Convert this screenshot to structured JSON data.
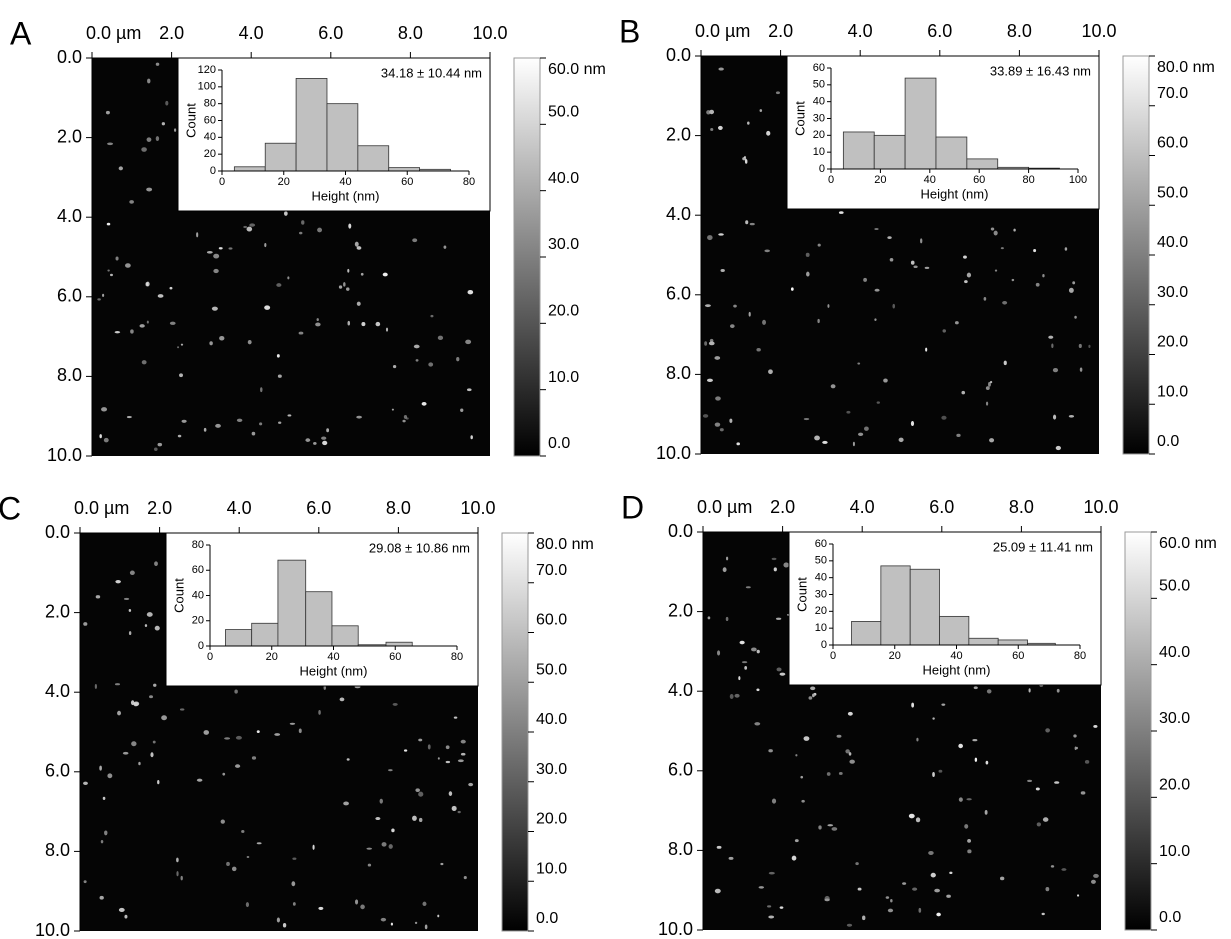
{
  "chart_data": [
    {
      "type": "histogram",
      "panel_label": "A",
      "annotation": "34.18 ± 10.44 nm",
      "xlabel": "Height (nm)",
      "ylabel": "Count",
      "bins": [
        4,
        14,
        24,
        34,
        44,
        54,
        64,
        74
      ],
      "values": [
        5,
        33,
        110,
        80,
        30,
        4,
        2
      ],
      "color": "#c0c0c0",
      "xlim": [
        0,
        80
      ],
      "xticks": [
        0,
        20,
        40,
        60,
        80
      ],
      "ylim": [
        0,
        120
      ],
      "yticks": [
        0,
        20,
        40,
        60,
        80,
        100,
        120
      ],
      "image": {
        "xlim": [
          0,
          10
        ],
        "ylim": [
          0,
          10
        ],
        "xticks": [
          {
            "value": 0,
            "label": "0.0 µm"
          },
          {
            "value": 2,
            "label": "2.0"
          },
          {
            "value": 4,
            "label": "4.0"
          },
          {
            "value": 6,
            "label": "6.0"
          },
          {
            "value": 8,
            "label": "8.0"
          },
          {
            "value": 10,
            "label": "10.0"
          }
        ],
        "yticks": [
          {
            "value": 0,
            "label": "0.0"
          },
          {
            "value": 2,
            "label": "2.0"
          },
          {
            "value": 4,
            "label": "4.0"
          },
          {
            "value": 6,
            "label": "6.0"
          },
          {
            "value": 8,
            "label": "8.0"
          },
          {
            "value": 10,
            "label": "10.0"
          }
        ]
      },
      "colorbar": {
        "lim": [
          0,
          60
        ],
        "ticks": [
          {
            "value": 0,
            "label": "0.0"
          },
          {
            "value": 10,
            "label": "10.0"
          },
          {
            "value": 20,
            "label": "20.0"
          },
          {
            "value": 30,
            "label": "30.0"
          },
          {
            "value": 40,
            "label": "40.0"
          },
          {
            "value": 50,
            "label": "50.0"
          },
          {
            "value": 60,
            "label": "60.0 nm"
          }
        ]
      }
    },
    {
      "type": "histogram",
      "panel_label": "B",
      "annotation": "33.89 ± 16.43 nm",
      "xlabel": "Height (nm)",
      "ylabel": "Count",
      "bins": [
        5,
        17.5,
        30,
        42.5,
        55,
        67.5,
        80,
        92.5
      ],
      "values": [
        22,
        20,
        54,
        19,
        6,
        1,
        0.5
      ],
      "color": "#c0c0c0",
      "xlim": [
        0,
        100
      ],
      "xticks": [
        0,
        20,
        40,
        60,
        80,
        100
      ],
      "ylim": [
        0,
        60
      ],
      "yticks": [
        0,
        10,
        20,
        30,
        40,
        50,
        60
      ],
      "image": {
        "xlim": [
          0,
          10
        ],
        "ylim": [
          0,
          10
        ],
        "xticks": [
          {
            "value": 0,
            "label": "0.0 µm"
          },
          {
            "value": 2,
            "label": "2.0"
          },
          {
            "value": 4,
            "label": "4.0"
          },
          {
            "value": 6,
            "label": "6.0"
          },
          {
            "value": 8,
            "label": "8.0"
          },
          {
            "value": 10,
            "label": "10.0"
          }
        ],
        "yticks": [
          {
            "value": 0,
            "label": "0.0"
          },
          {
            "value": 2,
            "label": "2.0"
          },
          {
            "value": 4,
            "label": "4.0"
          },
          {
            "value": 6,
            "label": "6.0"
          },
          {
            "value": 8,
            "label": "8.0"
          },
          {
            "value": 10,
            "label": "10.0"
          }
        ]
      },
      "colorbar": {
        "lim": [
          0,
          80
        ],
        "ticks": [
          {
            "value": 0,
            "label": "0.0"
          },
          {
            "value": 10,
            "label": "10.0"
          },
          {
            "value": 20,
            "label": "20.0"
          },
          {
            "value": 30,
            "label": "30.0"
          },
          {
            "value": 40,
            "label": "40.0"
          },
          {
            "value": 50,
            "label": "50.0"
          },
          {
            "value": 60,
            "label": "60.0"
          },
          {
            "value": 70,
            "label": "70.0"
          },
          {
            "value": 80,
            "label": "80.0 nm"
          }
        ]
      }
    },
    {
      "type": "histogram",
      "panel_label": "C",
      "annotation": "29.08 ± 10.86 nm",
      "xlabel": "Height (nm)",
      "ylabel": "Count",
      "bins": [
        5,
        13.5,
        22,
        31,
        39.5,
        48,
        57,
        65.5
      ],
      "values": [
        13,
        18,
        68,
        43,
        16,
        1,
        3
      ],
      "color": "#c0c0c0",
      "xlim": [
        0,
        80
      ],
      "xticks": [
        0,
        20,
        40,
        60,
        80
      ],
      "ylim": [
        0,
        80
      ],
      "yticks": [
        0,
        20,
        40,
        60,
        80
      ],
      "image": {
        "xlim": [
          0,
          10
        ],
        "ylim": [
          0,
          10
        ],
        "xticks": [
          {
            "value": 0,
            "label": "0.0 µm"
          },
          {
            "value": 2,
            "label": "2.0"
          },
          {
            "value": 4,
            "label": "4.0"
          },
          {
            "value": 6,
            "label": "6.0"
          },
          {
            "value": 8,
            "label": "8.0"
          },
          {
            "value": 10,
            "label": "10.0"
          }
        ],
        "yticks": [
          {
            "value": 0,
            "label": "0.0"
          },
          {
            "value": 2,
            "label": "2.0"
          },
          {
            "value": 4,
            "label": "4.0"
          },
          {
            "value": 6,
            "label": "6.0"
          },
          {
            "value": 8,
            "label": "8.0"
          },
          {
            "value": 10,
            "label": "10.0"
          }
        ]
      },
      "colorbar": {
        "lim": [
          0,
          80
        ],
        "ticks": [
          {
            "value": 0,
            "label": "0.0"
          },
          {
            "value": 10,
            "label": "10.0"
          },
          {
            "value": 20,
            "label": "20.0"
          },
          {
            "value": 30,
            "label": "30.0"
          },
          {
            "value": 40,
            "label": "40.0"
          },
          {
            "value": 50,
            "label": "50.0"
          },
          {
            "value": 60,
            "label": "60.0"
          },
          {
            "value": 70,
            "label": "70.0"
          },
          {
            "value": 80,
            "label": "80.0 nm"
          }
        ]
      }
    },
    {
      "type": "histogram",
      "panel_label": "D",
      "annotation": "25.09 ± 11.41 nm",
      "xlabel": "Height (nm)",
      "ylabel": "Count",
      "bins": [
        6,
        15.5,
        25,
        34.5,
        44,
        53.5,
        63,
        72
      ],
      "values": [
        14,
        47,
        45,
        17,
        4,
        3,
        1
      ],
      "color": "#c0c0c0",
      "xlim": [
        0,
        80
      ],
      "xticks": [
        0,
        20,
        40,
        60,
        80
      ],
      "ylim": [
        0,
        60
      ],
      "yticks": [
        0,
        10,
        20,
        30,
        40,
        50,
        60
      ],
      "image": {
        "xlim": [
          0,
          10
        ],
        "ylim": [
          0,
          10
        ],
        "xticks": [
          {
            "value": 0,
            "label": "0.0 µm"
          },
          {
            "value": 2,
            "label": "2.0"
          },
          {
            "value": 4,
            "label": "4.0"
          },
          {
            "value": 6,
            "label": "6.0"
          },
          {
            "value": 8,
            "label": "8.0"
          },
          {
            "value": 10,
            "label": "10.0"
          }
        ],
        "yticks": [
          {
            "value": 0,
            "label": "0.0"
          },
          {
            "value": 2,
            "label": "2.0"
          },
          {
            "value": 4,
            "label": "4.0"
          },
          {
            "value": 6,
            "label": "6.0"
          },
          {
            "value": 8,
            "label": "8.0"
          },
          {
            "value": 10,
            "label": "10.0"
          }
        ]
      },
      "colorbar": {
        "lim": [
          0,
          60
        ],
        "ticks": [
          {
            "value": 0,
            "label": "0.0"
          },
          {
            "value": 10,
            "label": "10.0"
          },
          {
            "value": 20,
            "label": "20.0"
          },
          {
            "value": 30,
            "label": "30.0"
          },
          {
            "value": 40,
            "label": "40.0"
          },
          {
            "value": 50,
            "label": "50.0"
          },
          {
            "value": 60,
            "label": "60.0 nm"
          }
        ]
      }
    }
  ]
}
